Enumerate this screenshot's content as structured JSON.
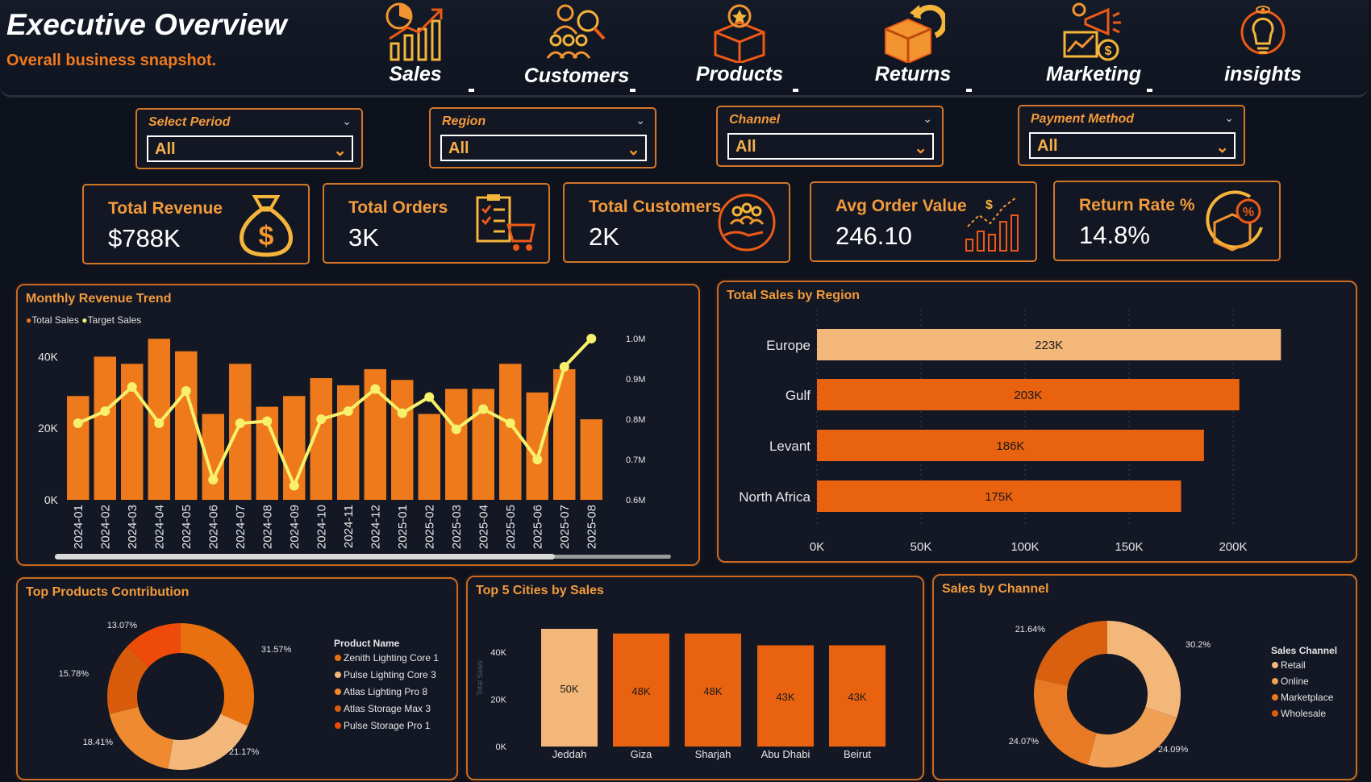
{
  "header": {
    "title": "Executive Overview",
    "subtitle": "Overall business snapshot."
  },
  "nav": [
    {
      "label": "Sales",
      "icon": "sales-chart-icon"
    },
    {
      "label": "Customers",
      "icon": "customers-search-icon"
    },
    {
      "label": "Products",
      "icon": "product-box-icon"
    },
    {
      "label": "Returns",
      "icon": "return-box-icon"
    },
    {
      "label": "Marketing",
      "icon": "marketing-megaphone-icon"
    },
    {
      "label": "insights",
      "icon": "lightbulb-icon"
    }
  ],
  "filters": [
    {
      "label": "Select Period",
      "value": "All"
    },
    {
      "label": "Region",
      "value": "All"
    },
    {
      "label": "Channel",
      "value": "All"
    },
    {
      "label": "Payment Method",
      "value": "All"
    }
  ],
  "kpis": [
    {
      "label": "Total Revenue",
      "value": "$788K",
      "icon": "money-bag-icon"
    },
    {
      "label": "Total Orders",
      "value": "3K",
      "icon": "checklist-cart-icon"
    },
    {
      "label": "Total Customers",
      "value": "2K",
      "icon": "customers-hand-icon"
    },
    {
      "label": "Avg Order Value",
      "value": "246.10",
      "icon": "growth-bars-icon"
    },
    {
      "label": "Return Rate %",
      "value": "14.8%",
      "icon": "return-percent-icon"
    }
  ],
  "colors": {
    "accent": "#f07a1e",
    "bar_dark": "#e8620f",
    "bar_light": "#f4b77a",
    "line": "#f7f06a",
    "background": "#0e121c"
  },
  "panels": {
    "monthly_title": "Monthly Revenue Trend",
    "region_title": "Total Sales by Region",
    "products_title": "Top Products Contribution",
    "cities_title": "Top 5 Cities by Sales",
    "channel_title": "Sales by Channel",
    "monthly_legend_sales": "Total Sales",
    "monthly_legend_target": "Target Sales",
    "products_legend_title": "Product Name",
    "channel_legend_title": "Sales Channel",
    "cities_ylabel": "Total Sales"
  },
  "chart_data": [
    {
      "type": "bar",
      "title": "Monthly Revenue Trend",
      "categories": [
        "2024-01",
        "2024-02",
        "2024-03",
        "2024-04",
        "2024-05",
        "2024-06",
        "2024-07",
        "2024-08",
        "2024-09",
        "2024-10",
        "2024-11",
        "2024-12",
        "2025-01",
        "2025-02",
        "2025-03",
        "2025-04",
        "2025-05",
        "2025-06",
        "2025-07",
        "2025-08"
      ],
      "series": [
        {
          "name": "Total Sales",
          "axis": "left",
          "values": [
            29000,
            40000,
            38000,
            45000,
            41500,
            24000,
            38000,
            26000,
            29000,
            34000,
            32000,
            36500,
            33500,
            24000,
            31000,
            31000,
            38000,
            30000,
            36500,
            22500
          ]
        },
        {
          "name": "Target Sales",
          "axis": "right",
          "type": "line",
          "values": [
            790000,
            820000,
            880000,
            790000,
            870000,
            650000,
            790000,
            795000,
            635000,
            800000,
            820000,
            875000,
            815000,
            855000,
            775000,
            825000,
            790000,
            700000,
            930000,
            1000000
          ]
        }
      ],
      "ylim": [
        0,
        50000
      ],
      "y_ticks": [
        "0K",
        "20K",
        "40K"
      ],
      "y2lim": [
        0.6,
        1.0
      ],
      "y2_ticks": [
        "0.6M",
        "0.7M",
        "0.8M",
        "0.9M",
        "1.0M"
      ]
    },
    {
      "type": "bar",
      "orientation": "horizontal",
      "title": "Total Sales by Region",
      "categories": [
        "Europe",
        "Gulf",
        "Levant",
        "North Africa"
      ],
      "values": [
        223000,
        203000,
        186000,
        175000
      ],
      "data_labels": [
        "223K",
        "203K",
        "186K",
        "175K"
      ],
      "x_ticks": [
        "0K",
        "50K",
        "100K",
        "150K",
        "200K"
      ],
      "xlim": [
        0,
        230000
      ]
    },
    {
      "type": "pie",
      "title": "Top Products Contribution",
      "categories": [
        "Zenith Lighting Core 1",
        "Pulse Lighting Core 3",
        "Atlas Lighting Pro 8",
        "Atlas Storage Max 3",
        "Pulse Storage Pro 1"
      ],
      "values": [
        31.57,
        21.17,
        18.41,
        15.78,
        13.07
      ],
      "data_labels": [
        "31.57%",
        "21.17%",
        "18.41%",
        "15.78%",
        "13.07%"
      ],
      "colors": [
        "#e8700f",
        "#f4b77a",
        "#f08a30",
        "#d85c0c",
        "#ee4a0a"
      ]
    },
    {
      "type": "bar",
      "title": "Top 5 Cities by Sales",
      "categories": [
        "Jeddah",
        "Giza",
        "Sharjah",
        "Abu Dhabi",
        "Beirut"
      ],
      "values": [
        50000,
        48000,
        48000,
        43000,
        43000
      ],
      "data_labels": [
        "50K",
        "48K",
        "48K",
        "43K",
        "43K"
      ],
      "y_ticks": [
        "0K",
        "20K",
        "40K"
      ],
      "ylim": [
        0,
        50000
      ],
      "ylabel": "Total Sales"
    },
    {
      "type": "pie",
      "title": "Sales by Channel",
      "categories": [
        "Retail",
        "Online",
        "Marketplace",
        "Wholesale"
      ],
      "values": [
        30.2,
        24.09,
        24.07,
        21.64
      ],
      "data_labels": [
        "30.2%",
        "24.09%",
        "24.07%",
        "21.64%"
      ],
      "colors": [
        "#f4b77a",
        "#f0a055",
        "#e87a25",
        "#d9600f"
      ]
    }
  ]
}
